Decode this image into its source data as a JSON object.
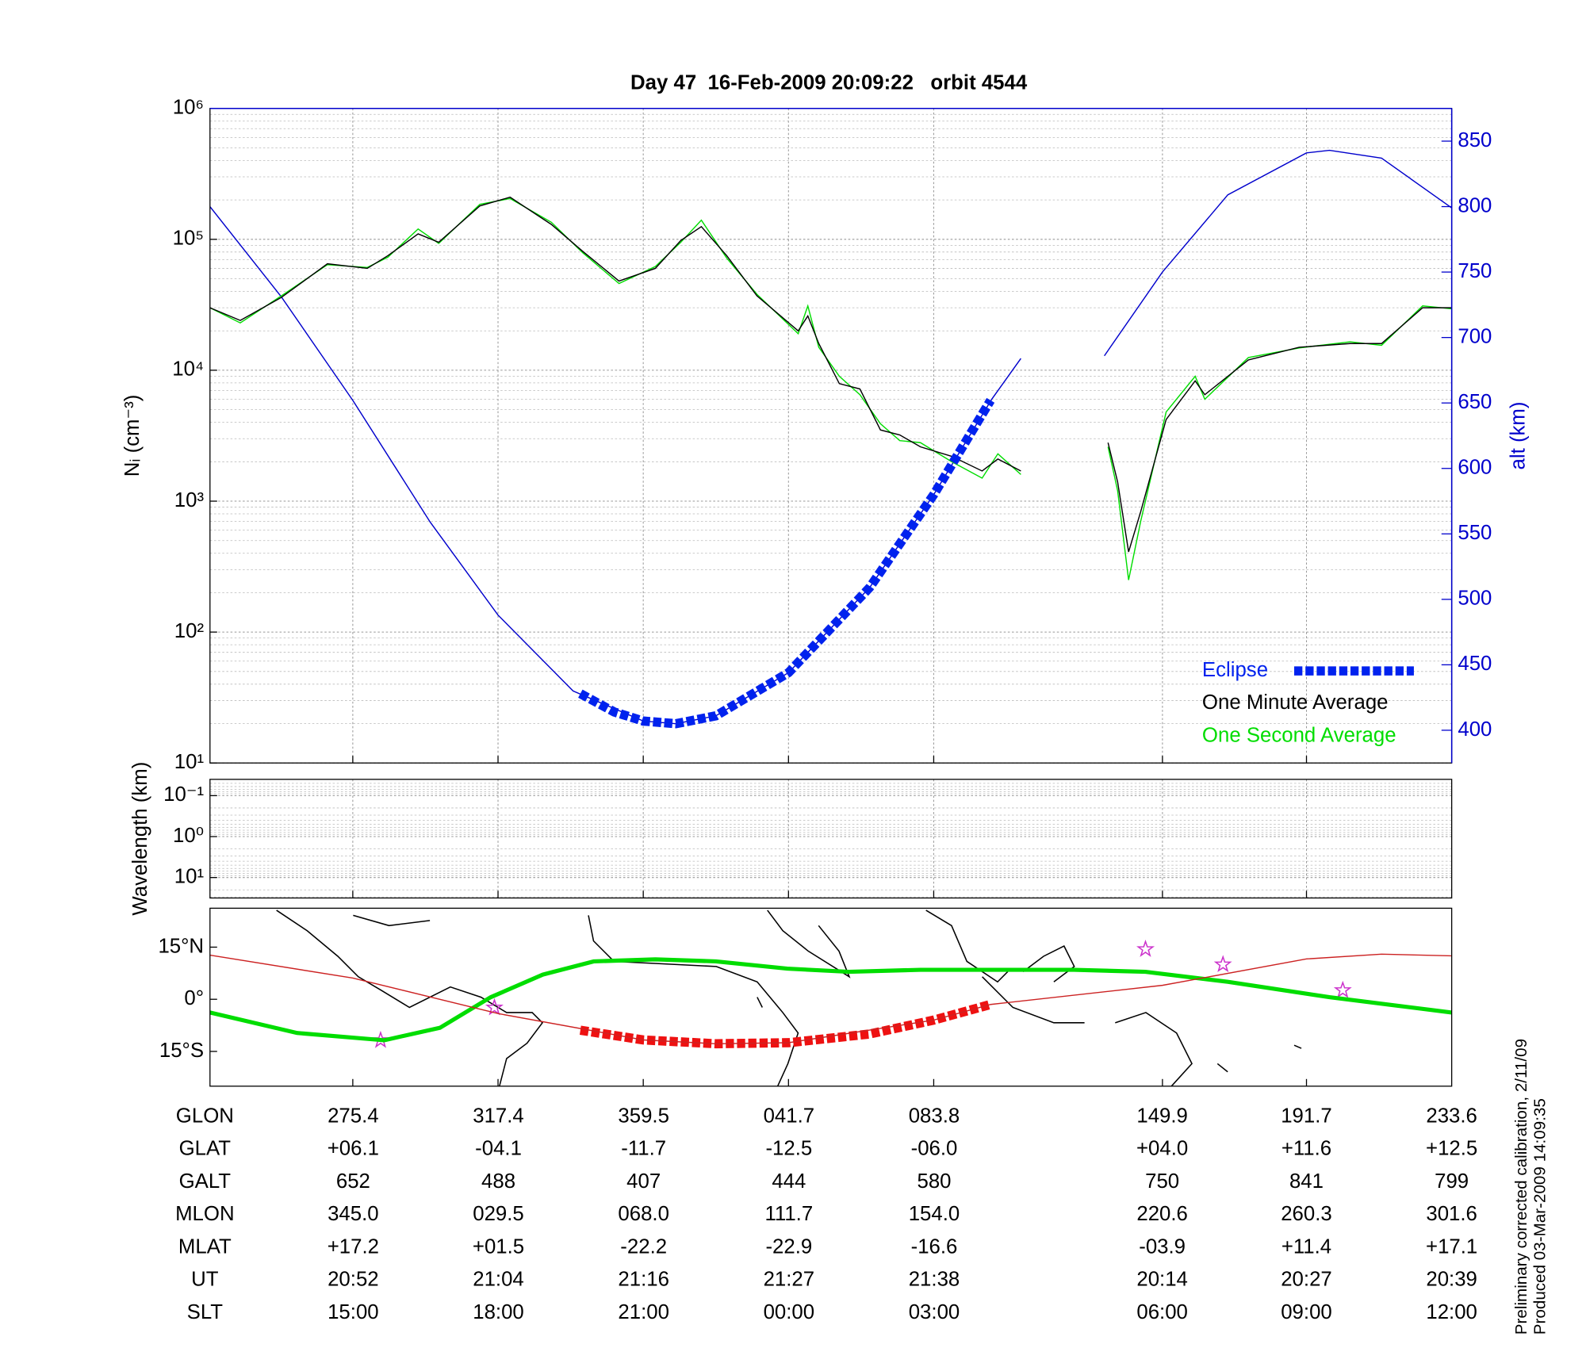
{
  "chart_data": [
    {
      "type": "line",
      "title": "Day 47  16-Feb-2009 20:09:22   orbit 4544",
      "y_label": "Nᵢ (cm⁻³)",
      "y2_label": "alt (km)",
      "xlim": [
        0,
        102.6
      ],
      "xticks": [
        11.8,
        23.8,
        35.8,
        47.8,
        59.8,
        78.7,
        90.6
      ],
      "ylim": [
        10,
        1000000
      ],
      "ylog": true,
      "yticks": [
        {
          "value": 10,
          "label": "10¹"
        },
        {
          "value": 100,
          "label": "10²"
        },
        {
          "value": 1000,
          "label": "10³"
        },
        {
          "value": 10000,
          "label": "10⁴"
        },
        {
          "value": 100000,
          "label": "10⁵"
        },
        {
          "value": 1000000,
          "label": "10⁶"
        }
      ],
      "y2lim": [
        375,
        875
      ],
      "y2ticks": [
        400,
        450,
        500,
        550,
        600,
        650,
        700,
        750,
        800,
        850
      ],
      "y2color": "#0000cc",
      "grid": true,
      "minor_grid": true,
      "legend": "lower right",
      "series": [
        {
          "name": "Eclipse",
          "color": "#0022ee",
          "axis": "y2",
          "style": "dashed",
          "x": [
            30.6,
            33.4,
            35.8,
            38.5,
            41.8,
            47.8,
            54.5,
            59.8,
            64.5
          ],
          "values": [
            428,
            414,
            407,
            405,
            411,
            444,
            509,
            580,
            652
          ]
        },
        {
          "name": "One Minute Average",
          "color": "#000000",
          "x": [
            0,
            2.5,
            5.9,
            9.7,
            13.0,
            14.7,
            17.2,
            18.9,
            22.3,
            24.8,
            28.2,
            30.8,
            33.8,
            36.8,
            38.9,
            40.6,
            42.7,
            45.2,
            48.6,
            49.4,
            50.3,
            52.0,
            53.7,
            55.4,
            57.0,
            58.7,
            61.3,
            63.8,
            65.1,
            67.0,
            70.6,
            74.2,
            75.0,
            75.9,
            76.9,
            79.0,
            81.4,
            82.2,
            85.8,
            90.0,
            94.2,
            96.8,
            100.2,
            102.6
          ],
          "values": [
            30000,
            24000,
            36000,
            65000,
            60000,
            75000,
            110000,
            95000,
            180000,
            210000,
            130000,
            81000,
            48000,
            60000,
            98000,
            125000,
            75000,
            37000,
            20000,
            26000,
            16000,
            7900,
            7200,
            3500,
            3200,
            2600,
            2200,
            1700,
            2100,
            1700,
            null,
            2800,
            1400,
            410,
            830,
            4200,
            8300,
            6500,
            12000,
            15000,
            16000,
            16000,
            30000,
            30000
          ]
        },
        {
          "name": "One Second Average",
          "color": "#00dd00",
          "x": [
            0,
            2.5,
            5.9,
            9.7,
            13.0,
            14.7,
            17.2,
            18.9,
            22.3,
            24.8,
            28.2,
            30.8,
            33.8,
            36.8,
            38.9,
            40.6,
            42.7,
            45.2,
            48.6,
            49.4,
            50.3,
            52.0,
            53.7,
            55.4,
            57.0,
            58.7,
            61.3,
            63.8,
            65.1,
            67.0,
            70.6,
            74.2,
            75.0,
            75.9,
            76.9,
            79.0,
            81.4,
            82.2,
            85.8,
            90.0,
            94.2,
            96.8,
            100.2,
            102.6
          ],
          "values": [
            30000,
            23000,
            37000,
            64000,
            61000,
            73000,
            120000,
            93000,
            185000,
            205000,
            135000,
            79000,
            46000,
            62000,
            95000,
            140000,
            72000,
            38000,
            19000,
            31000,
            15000,
            9000,
            6500,
            3900,
            2900,
            2800,
            2000,
            1500,
            2300,
            1600,
            null,
            2600,
            1200,
            250,
            700,
            4800,
            9000,
            6000,
            12500,
            14800,
            16500,
            15500,
            31000,
            29500
          ]
        },
        {
          "color": "#0000cc",
          "axis": "y2",
          "x": [
            0,
            5.9,
            11.8,
            18.2,
            23.8,
            30.0,
            35.8,
            38.5,
            41.8,
            47.8,
            54.5,
            59.8,
            64.6,
            67.0,
            70.5,
            73.9,
            78.7,
            84.1,
            90.6,
            92.5,
            96.8,
            102.6
          ],
          "values": [
            800,
            731,
            652,
            559,
            488,
            430,
            407,
            405,
            411,
            444,
            509,
            580,
            653,
            684,
            null,
            686,
            750,
            809,
            841,
            843,
            837,
            799
          ]
        }
      ]
    },
    {
      "type": "line",
      "y_label": "Wavelength (km)",
      "xlim": [
        0,
        102.6
      ],
      "xticks": [
        11.8,
        23.8,
        35.8,
        47.8,
        59.8,
        78.7,
        90.6
      ],
      "ylim": [
        31.6,
        0.04
      ],
      "ylog": true,
      "yticks": [
        {
          "value": 0.1,
          "label": "10⁻¹"
        },
        {
          "value": 1,
          "label": "10⁰"
        },
        {
          "value": 10,
          "label": "10¹"
        }
      ],
      "grid": true,
      "minor_grid": true,
      "series": []
    },
    {
      "type": "line",
      "xlim": [
        0,
        102.6
      ],
      "xticks": [
        11.8,
        23.8,
        35.8,
        47.8,
        59.8,
        78.7,
        90.6
      ],
      "ylim": [
        -25,
        26.2
      ],
      "yticks": [
        {
          "value": 15,
          "label": "15°N"
        },
        {
          "value": 0,
          "label": "0°"
        },
        {
          "value": -15,
          "label": "15°S"
        }
      ],
      "grid": false,
      "series": [
        {
          "color": "#cc2222",
          "x": [
            0,
            11.8,
            23.8,
            35.8,
            41.8,
            47.8,
            59.8,
            64.5,
            78.7,
            90.6,
            96.8,
            102.6
          ],
          "values": [
            12.7,
            6.1,
            -4.1,
            -11.7,
            -12.8,
            -12.5,
            -6.0,
            -1.5,
            4.0,
            11.6,
            13.0,
            12.5
          ]
        },
        {
          "color": "#00dd00",
          "style": "thick",
          "x": [
            0,
            7.2,
            14.4,
            19.0,
            23.2,
            27.5,
            31.7,
            36.8,
            41.8,
            47.7,
            52.8,
            58.7,
            63.8,
            71.4,
            77.3,
            84.1,
            92.5,
            102.6
          ],
          "values": [
            -3.8,
            -9.7,
            -11.8,
            -8.2,
            0.6,
            7.1,
            10.9,
            11.5,
            10.9,
            8.8,
            7.9,
            8.5,
            8.5,
            8.5,
            7.9,
            5.0,
            0.6,
            -3.8
          ]
        },
        {
          "color": "#ee1111",
          "style": "dashed",
          "x": [
            30.6,
            35.8,
            41.8,
            47.8,
            54.5,
            59.8,
            64.5
          ],
          "values": [
            -8.9,
            -11.7,
            -12.8,
            -12.5,
            -10.0,
            -6.0,
            -1.5
          ]
        },
        {
          "color": "#cc33cc",
          "marker": "star",
          "x": [
            23.5,
            14.1,
            77.3,
            83.7,
            93.6
          ],
          "values": [
            -2.4,
            -11.8,
            14.4,
            10.0,
            2.6
          ]
        }
      ]
    }
  ],
  "table": {
    "rows": [
      {
        "label": "GLON",
        "values": [
          "275.4",
          "317.4",
          "359.5",
          "041.7",
          "083.8",
          "149.9",
          "191.7",
          "233.6"
        ]
      },
      {
        "label": "GLAT",
        "values": [
          "+06.1",
          "-04.1",
          "-11.7",
          "-12.5",
          "-06.0",
          "+04.0",
          "+11.6",
          "+12.5"
        ]
      },
      {
        "label": "GALT",
        "values": [
          "652",
          "488",
          "407",
          "444",
          "580",
          "750",
          "841",
          "799"
        ]
      },
      {
        "label": "MLON",
        "values": [
          "345.0",
          "029.5",
          "068.0",
          "111.7",
          "154.0",
          "220.6",
          "260.3",
          "301.6"
        ]
      },
      {
        "label": "MLAT",
        "values": [
          "+17.2",
          "+01.5",
          "-22.2",
          "-22.9",
          "-16.6",
          "-03.9",
          "+11.4",
          "+17.1"
        ]
      },
      {
        "label": "UT",
        "values": [
          "20:52",
          "21:04",
          "21:16",
          "21:27",
          "21:38",
          "20:14",
          "20:27",
          "20:39"
        ]
      },
      {
        "label": "SLT",
        "values": [
          "15:00",
          "18:00",
          "21:00",
          "00:00",
          "03:00",
          "06:00",
          "09:00",
          "12:00"
        ]
      }
    ]
  },
  "notes": [
    "Preliminary corrected calibration, 2/11/09",
    "Produced 03-Mar-2009 14:09:35"
  ]
}
